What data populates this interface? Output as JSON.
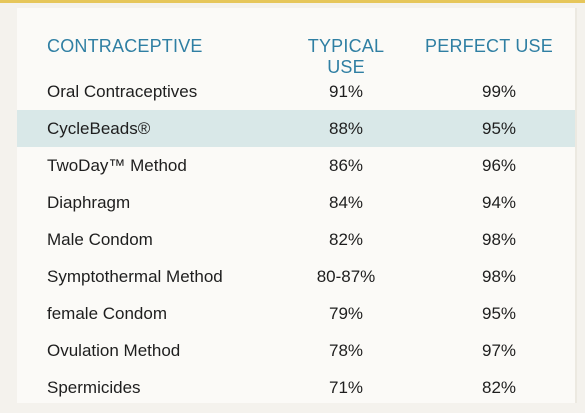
{
  "table": {
    "headers": {
      "contraceptive": "CONTRACEPTIVE",
      "typical": "TYPICAL USE",
      "perfect": "PERFECT USE"
    },
    "rows": [
      {
        "method": "Oral Contraceptives",
        "typical": "91%",
        "perfect": "99%"
      },
      {
        "method": "CycleBeads®",
        "typical": "88%",
        "perfect": "95%"
      },
      {
        "method": "TwoDay™ Method",
        "typical": "86%",
        "perfect": "96%"
      },
      {
        "method": "Diaphragm",
        "typical": "84%",
        "perfect": "94%"
      },
      {
        "method": "Male Condom",
        "typical": "82%",
        "perfect": "98%"
      },
      {
        "method": "Symptothermal Method",
        "typical": "80-87%",
        "perfect": "98%"
      },
      {
        "method": "female Condom",
        "typical": "79%",
        "perfect": "95%"
      },
      {
        "method": "Ovulation Method",
        "typical": "78%",
        "perfect": "97%"
      },
      {
        "method": "Spermicides",
        "typical": "71%",
        "perfect": "82%"
      }
    ],
    "highlight_color": "#d9e8e8",
    "header_color": "#2f7fa3"
  }
}
